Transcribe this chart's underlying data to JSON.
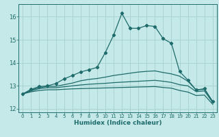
{
  "xlabel": "Humidex (Indice chaleur)",
  "xlim": [
    -0.5,
    23.5
  ],
  "ylim": [
    11.85,
    16.55
  ],
  "yticks": [
    12,
    13,
    14,
    15,
    16
  ],
  "xticks": [
    0,
    1,
    2,
    3,
    4,
    5,
    6,
    7,
    8,
    9,
    10,
    11,
    12,
    13,
    14,
    15,
    16,
    17,
    18,
    19,
    20,
    21,
    22,
    23
  ],
  "background_color": "#c5e8e8",
  "grid_color": "#aad4d4",
  "line_color": "#1e6b6b",
  "lines": [
    {
      "x": [
        0,
        1,
        2,
        3,
        4,
        5,
        6,
        7,
        8,
        9,
        10,
        11,
        12,
        13,
        14,
        15,
        16,
        17,
        18,
        19,
        20,
        21,
        22,
        23
      ],
      "y": [
        12.65,
        12.85,
        12.97,
        13.0,
        13.1,
        13.3,
        13.45,
        13.6,
        13.7,
        13.8,
        14.45,
        15.2,
        16.15,
        15.5,
        15.5,
        15.62,
        15.58,
        15.05,
        14.85,
        13.62,
        13.25,
        12.82,
        12.88,
        12.32
      ],
      "marker": true
    },
    {
      "x": [
        0,
        1,
        2,
        3,
        4,
        5,
        6,
        7,
        8,
        9,
        10,
        11,
        12,
        13,
        14,
        15,
        16,
        17,
        18,
        19,
        20,
        21,
        22,
        23
      ],
      "y": [
        12.65,
        12.82,
        12.92,
        12.98,
        12.98,
        13.05,
        13.12,
        13.22,
        13.28,
        13.32,
        13.38,
        13.45,
        13.5,
        13.55,
        13.6,
        13.63,
        13.65,
        13.58,
        13.52,
        13.42,
        13.2,
        12.82,
        12.85,
        12.32
      ],
      "marker": false
    },
    {
      "x": [
        0,
        1,
        2,
        3,
        4,
        5,
        6,
        7,
        8,
        9,
        10,
        11,
        12,
        13,
        14,
        15,
        16,
        17,
        18,
        19,
        20,
        21,
        22,
        23
      ],
      "y": [
        12.65,
        12.78,
        12.88,
        12.92,
        12.92,
        12.96,
        13.0,
        13.04,
        13.07,
        13.09,
        13.11,
        13.14,
        13.16,
        13.18,
        13.2,
        13.22,
        13.24,
        13.2,
        13.15,
        13.05,
        13.0,
        12.75,
        12.78,
        12.28
      ],
      "marker": false
    },
    {
      "x": [
        0,
        1,
        2,
        3,
        4,
        5,
        6,
        7,
        8,
        9,
        10,
        11,
        12,
        13,
        14,
        15,
        16,
        17,
        18,
        19,
        20,
        21,
        22,
        23
      ],
      "y": [
        12.65,
        12.74,
        12.8,
        12.83,
        12.83,
        12.85,
        12.87,
        12.88,
        12.89,
        12.9,
        12.91,
        12.92,
        12.93,
        12.94,
        12.95,
        12.96,
        12.97,
        12.93,
        12.9,
        12.8,
        12.73,
        12.58,
        12.6,
        12.2
      ],
      "marker": false
    }
  ]
}
